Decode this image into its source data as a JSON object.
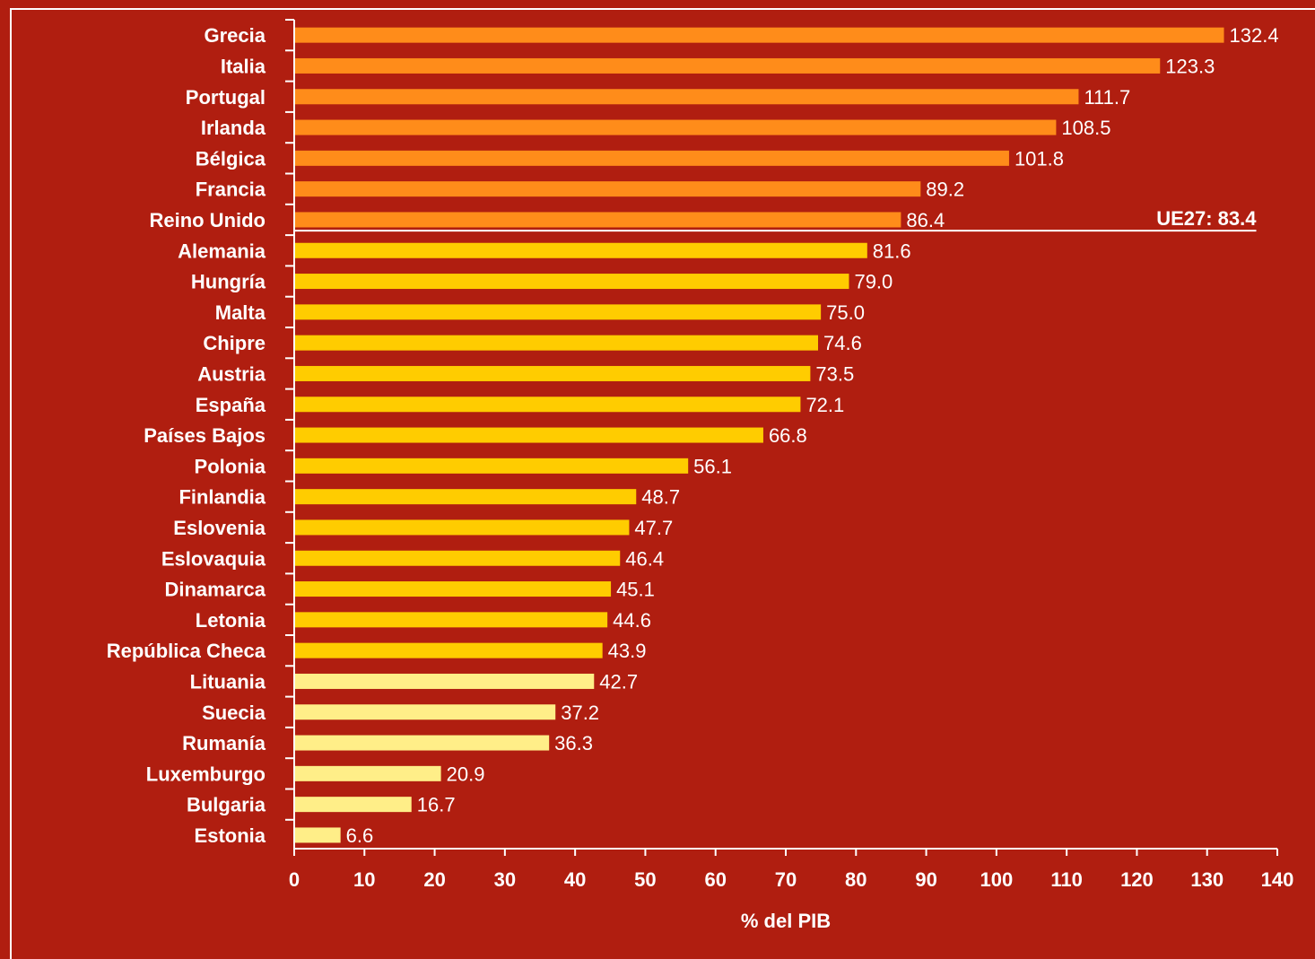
{
  "chart_data": {
    "type": "bar",
    "orientation": "horizontal",
    "categories": [
      "Grecia",
      "Italia",
      "Portugal",
      "Irlanda",
      "Bélgica",
      "Francia",
      "Reino Unido",
      "Alemania",
      "Hungría",
      "Malta",
      "Chipre",
      "Austria",
      "España",
      "Países Bajos",
      "Polonia",
      "Finlandia",
      "Eslovenia",
      "Eslovaquia",
      "Dinamarca",
      "Letonia",
      "República Checa",
      "Lituania",
      "Suecia",
      "Rumanía",
      "Luxemburgo",
      "Bulgaria",
      "Estonia"
    ],
    "values": [
      132.4,
      123.3,
      111.7,
      108.5,
      101.8,
      89.2,
      86.4,
      81.6,
      79.0,
      75.0,
      74.6,
      73.5,
      72.1,
      66.8,
      56.1,
      48.7,
      47.7,
      46.4,
      45.1,
      44.6,
      43.9,
      42.7,
      37.2,
      36.3,
      20.9,
      16.7,
      6.6
    ],
    "value_labels": [
      "132.4",
      "123.3",
      "111.7",
      "108.5",
      "101.8",
      "89.2",
      "86.4",
      "81.6",
      "79.0",
      "75.0",
      "74.6",
      "73.5",
      "72.1",
      "66.8",
      "56.1",
      "48.7",
      "47.7",
      "46.4",
      "45.1",
      "44.6",
      "43.9",
      "42.7",
      "37.2",
      "36.3",
      "20.9",
      "16.7",
      "6.6"
    ],
    "xlabel": "% del PIB",
    "ylabel": "",
    "title": "",
    "xlim": [
      0,
      140
    ],
    "xticks": [
      0,
      10,
      20,
      30,
      40,
      50,
      60,
      70,
      80,
      90,
      100,
      110,
      120,
      130,
      140
    ],
    "reference_line": {
      "value": 83.4,
      "label": "UE27: 83.4"
    },
    "grid": false,
    "colors": {
      "background": "#b01e10",
      "above_reference": "#ff8c1a",
      "mid_group": "#ffcc00",
      "low_group": "#ffee88",
      "text": "#ffffff",
      "axis": "#ffffff",
      "frame": "#ffffff"
    },
    "low_group_threshold": 43
  }
}
